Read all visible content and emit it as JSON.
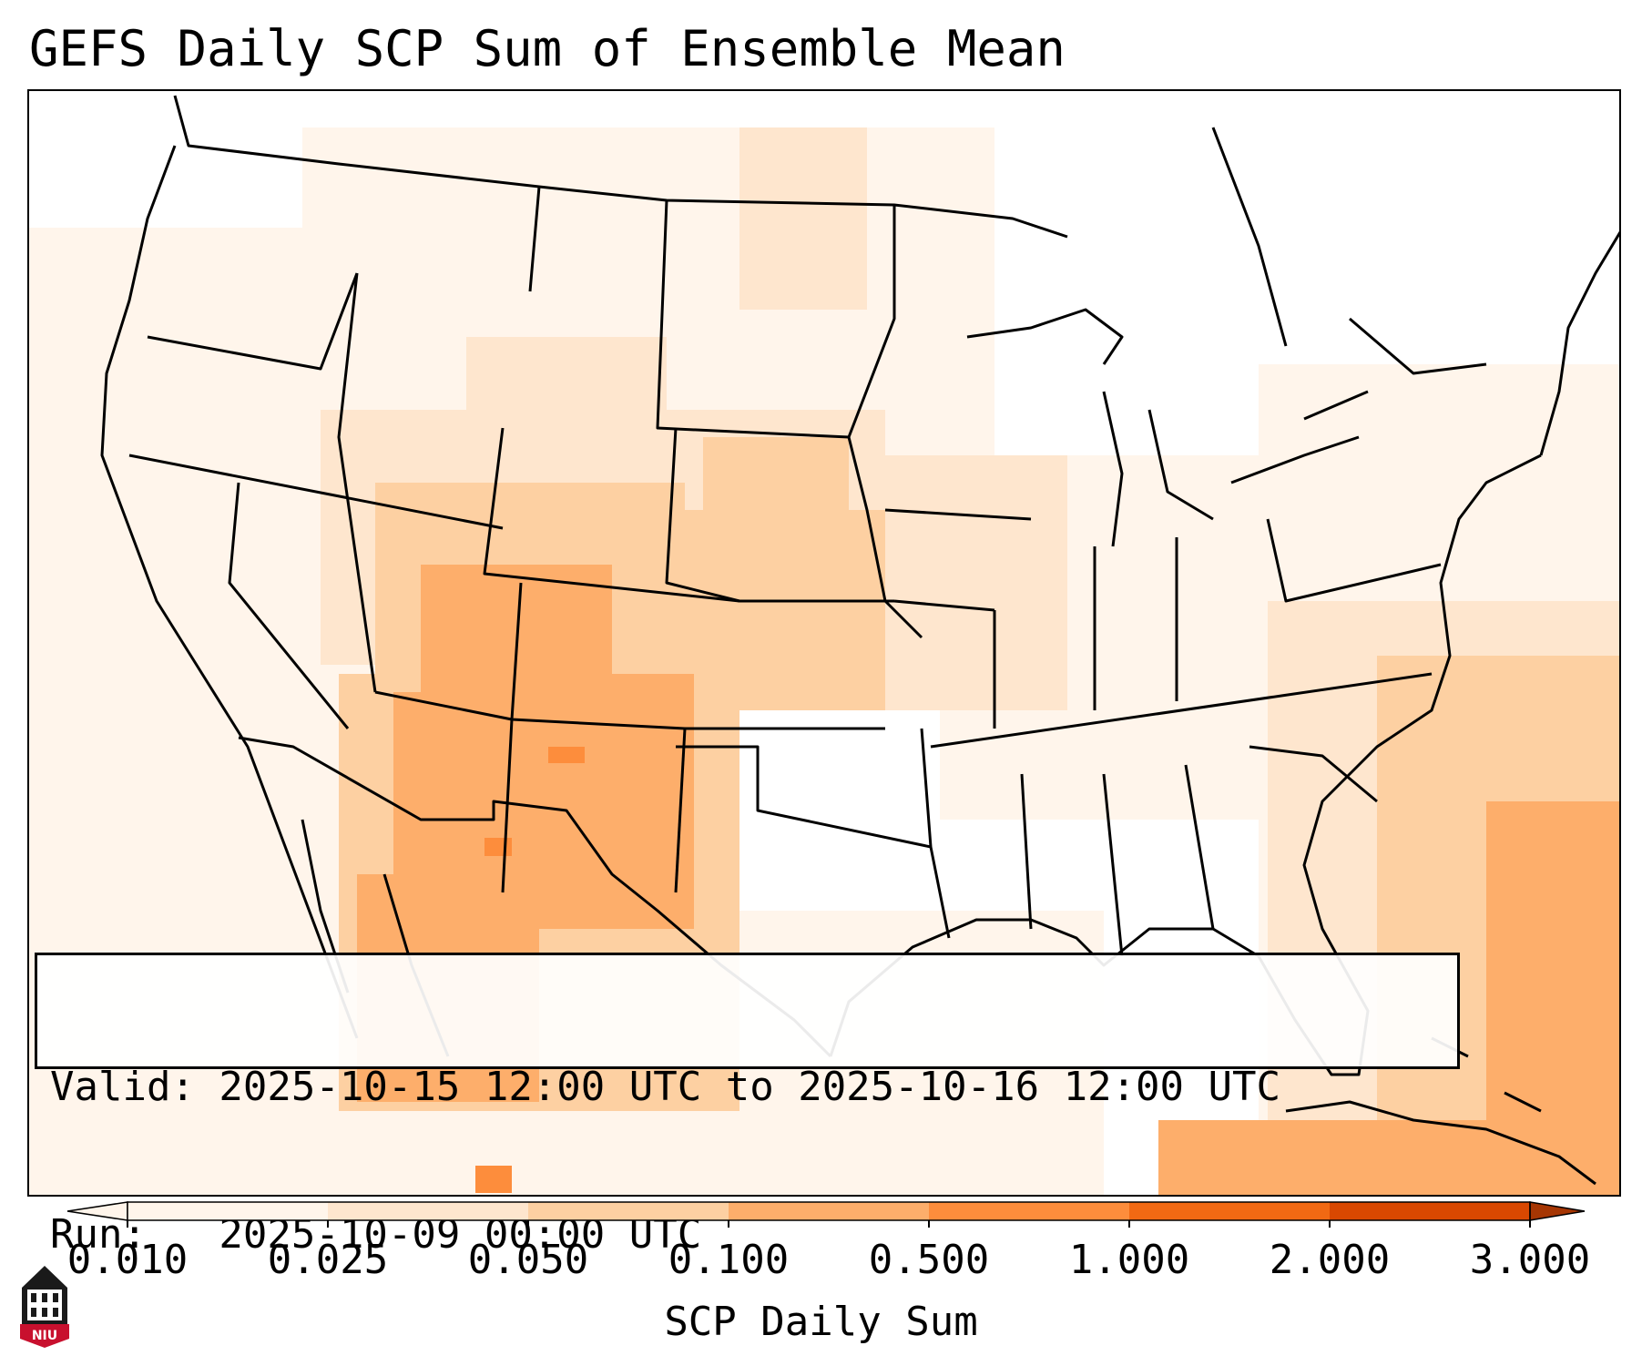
{
  "title": "GEFS Daily SCP Sum of Ensemble Mean",
  "info": {
    "valid_line": "Valid: 2025-10-15 12:00 UTC to 2025-10-16 12:00 UTC",
    "run_line": "Run:   2025-10-09 00:00 UTC"
  },
  "colorbar": {
    "label": "SCP Daily Sum",
    "ticks": [
      "0.010",
      "0.025",
      "0.050",
      "0.100",
      "0.500",
      "1.000",
      "2.000",
      "3.000"
    ],
    "colors": [
      "#fff5eb",
      "#fee6ce",
      "#fdd0a2",
      "#fdae6b",
      "#fd8d3c",
      "#f16913",
      "#d94801",
      "#a63603"
    ],
    "extend": "both"
  },
  "logo": {
    "text": "NIU",
    "color": "#c8102e"
  },
  "map": {
    "projection": "Lambert Conformal - CONUS",
    "fill_regions": [
      {
        "name": "southwest-max",
        "category": 3
      },
      {
        "name": "new-mexico-core",
        "category": 4
      },
      {
        "name": "colorado-utah",
        "category": 2
      },
      {
        "name": "central-plains",
        "category": 2
      },
      {
        "name": "atlantic-offshore",
        "category": 3
      },
      {
        "name": "background-light",
        "category": 0
      }
    ]
  }
}
